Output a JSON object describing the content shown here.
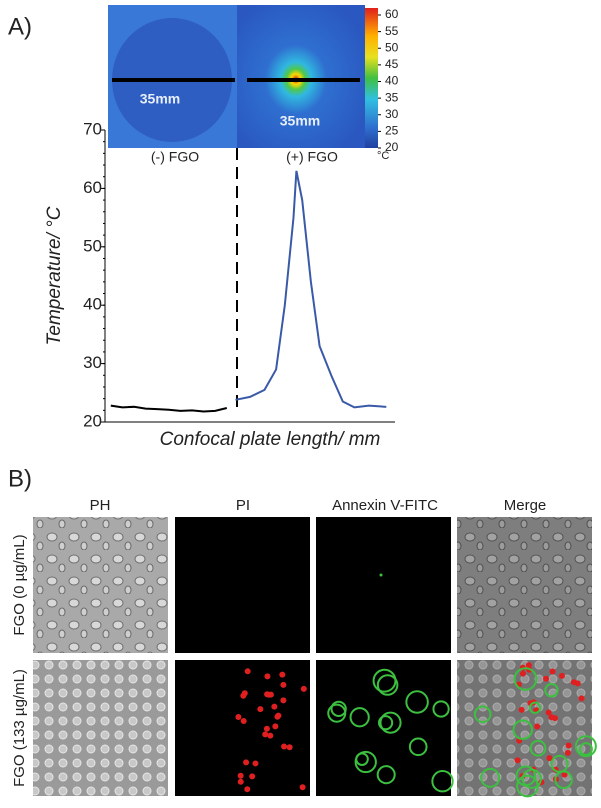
{
  "panel_a": {
    "label": "A)",
    "images": {
      "scale_labels": [
        "35mm",
        "35mm"
      ],
      "captions": [
        "(-) FGO",
        "(+) FGO"
      ],
      "colorbar": {
        "ticks": [
          60,
          55,
          50,
          45,
          40,
          35,
          30,
          25,
          20
        ],
        "lim": [
          20,
          60
        ],
        "unit": "°C"
      }
    }
  },
  "chart_data": {
    "type": "line",
    "y_label": "Temperature/ °C",
    "x_label": "Confocal plate length/ mm",
    "x": [
      2,
      6,
      10,
      14,
      18,
      22,
      26,
      30,
      34,
      38,
      42,
      45,
      50,
      55,
      59,
      62,
      65,
      66,
      68,
      71,
      74,
      78,
      82,
      86,
      91,
      97
    ],
    "xlim": [
      0,
      100
    ],
    "ylim": [
      20,
      70
    ],
    "yticks": [
      20,
      30,
      40,
      50,
      60,
      70
    ],
    "series": [
      {
        "color": "#000000",
        "values": [
          22.8,
          22.5,
          22.6,
          22.3,
          22.2,
          22.1,
          21.9,
          22.0,
          21.8,
          21.9,
          22.4,
          null,
          null,
          null,
          null,
          null,
          null,
          null,
          null,
          null,
          null,
          null,
          null,
          null,
          null,
          null
        ]
      },
      {
        "color": "#3a5aa8",
        "values": [
          null,
          null,
          null,
          null,
          null,
          null,
          null,
          null,
          null,
          null,
          null,
          23.8,
          24.3,
          25.5,
          29,
          40,
          55,
          63,
          58,
          44,
          33,
          28,
          23.5,
          22.5,
          22.8,
          22.6
        ]
      }
    ]
  },
  "panel_b": {
    "label": "B)",
    "columns": [
      "PH",
      "PI",
      "Annexin V-FITC",
      "Merge"
    ],
    "rows": [
      "FGO (0 µg/mL)",
      "FGO (133 µg/mL)"
    ]
  }
}
